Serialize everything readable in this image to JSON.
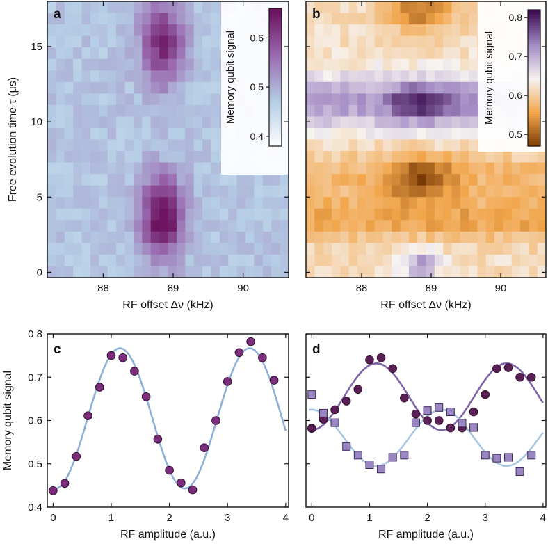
{
  "chart_data": [
    {
      "panel": "a",
      "type": "heatmap",
      "xlabel": "RF offset Δν (kHz)",
      "ylabel": "Free evolution time τ (μs)",
      "xlim": [
        87.2,
        90.65
      ],
      "ylim": [
        -0.35,
        18
      ],
      "xticks": [
        "88",
        "89",
        "90"
      ],
      "xtick_values": [
        88,
        89,
        90
      ],
      "yticks": [
        "0",
        "5",
        "10",
        "15"
      ],
      "ytick_values": [
        0,
        5,
        10,
        15
      ],
      "grid": {
        "cols": 28,
        "rows": 24
      },
      "colorbar": {
        "label": "Memory qubit signal",
        "range": [
          0.38,
          0.66
        ],
        "ticks": [
          "0.4",
          "0.5",
          "0.6"
        ],
        "tick_values": [
          0.4,
          0.5,
          0.6
        ],
        "colors": [
          "#ffffff",
          "#b5cde5",
          "#9a6ab0",
          "#6a0f5c"
        ]
      },
      "model": {
        "background": 0.48,
        "peaks": [
          {
            "x": 88.85,
            "y": 3.7,
            "sx": 0.22,
            "sy": 1.9,
            "amp": 0.19
          },
          {
            "x": 88.85,
            "y": 15.2,
            "sx": 0.22,
            "sy": 2.0,
            "amp": 0.15
          }
        ]
      }
    },
    {
      "panel": "b",
      "type": "heatmap",
      "xlabel": "RF offset Δν (kHz)",
      "xlim": [
        87.2,
        90.65
      ],
      "ylim": [
        -0.35,
        18
      ],
      "xticks": [
        "88",
        "89",
        "90"
      ],
      "xtick_values": [
        88,
        89,
        90
      ],
      "grid": {
        "cols": 28,
        "rows": 24
      },
      "colorbar": {
        "label": "Memory qubit signal",
        "range": [
          0.47,
          0.82
        ],
        "ticks": [
          "0.5",
          "0.6",
          "0.7",
          "0.8"
        ],
        "tick_values": [
          0.5,
          0.6,
          0.7,
          0.8
        ],
        "colors": [
          "#7a3a05",
          "#f2a54a",
          "#f6f3f1",
          "#a38bc4",
          "#3b0b4f"
        ]
      },
      "model": {
        "background": 0.62,
        "bands": [
          {
            "y": 11.3,
            "sy": 1.3,
            "amp": 0.1
          },
          {
            "y": 3.5,
            "sy": 1.0,
            "amp": -0.06
          },
          {
            "y": 6.3,
            "sy": 1.2,
            "amp": -0.04
          }
        ],
        "peaks": [
          {
            "x": 88.85,
            "y": 11.3,
            "sx": 0.3,
            "sy": 0.9,
            "amp": 0.1
          },
          {
            "x": 88.85,
            "y": 6.3,
            "sx": 0.35,
            "sy": 1.0,
            "amp": -0.1
          },
          {
            "x": 88.85,
            "y": 17.3,
            "sx": 0.35,
            "sy": 0.9,
            "amp": -0.1
          },
          {
            "x": 88.85,
            "y": 0.5,
            "sx": 0.2,
            "sy": 0.7,
            "amp": 0.1
          }
        ]
      }
    },
    {
      "panel": "c",
      "type": "scatter",
      "xlabel": "RF amplitude (a.u.)",
      "ylabel": "Memory qubit signal",
      "xlim": [
        -0.1,
        4.05
      ],
      "ylim": [
        0.4,
        0.8
      ],
      "xticks": [
        "0",
        "1",
        "2",
        "3",
        "4"
      ],
      "xtick_values": [
        0,
        1,
        2,
        3,
        4
      ],
      "yticks": [
        "0.4",
        "0.5",
        "0.6",
        "0.7",
        "0.8"
      ],
      "ytick_values": [
        0.4,
        0.5,
        0.6,
        0.7,
        0.8
      ],
      "series": [
        {
          "name": "data",
          "marker": "circle",
          "color": "#7b2d7b",
          "x": [
            0,
            0.2,
            0.4,
            0.6,
            0.8,
            1.0,
            1.2,
            1.4,
            1.6,
            1.8,
            2.0,
            2.2,
            2.4,
            2.6,
            2.8,
            3.0,
            3.2,
            3.4,
            3.6,
            3.8
          ],
          "y": [
            0.438,
            0.455,
            0.517,
            0.611,
            0.677,
            0.75,
            0.745,
            0.714,
            0.655,
            0.557,
            0.485,
            0.456,
            0.44,
            0.537,
            0.6,
            0.69,
            0.757,
            0.782,
            0.745,
            0.693
          ]
        },
        {
          "name": "fit",
          "type": "line",
          "color": "#8eb0d6",
          "function": "offset + amp*cos(2*pi*(x - x0)/period)",
          "params": {
            "offset": 0.605,
            "amp": 0.162,
            "period": 2.23,
            "x0": 1.15
          },
          "x_range": [
            0,
            4
          ]
        }
      ]
    },
    {
      "panel": "d",
      "type": "scatter",
      "xlabel": "RF amplitude (a.u.)",
      "xlim": [
        -0.1,
        4.05
      ],
      "ylim": [
        0.4,
        0.8
      ],
      "xticks": [
        "0",
        "1",
        "2",
        "3",
        "4"
      ],
      "xtick_values": [
        0,
        1,
        2,
        3,
        4
      ],
      "series": [
        {
          "name": "circles",
          "marker": "circle",
          "color": "#5a1f55",
          "x": [
            0,
            0.2,
            0.4,
            0.6,
            0.8,
            1.0,
            1.2,
            1.4,
            1.6,
            1.8,
            2.0,
            2.2,
            2.4,
            2.6,
            2.8,
            3.0,
            3.2,
            3.4,
            3.6,
            3.8
          ],
          "y": [
            0.582,
            0.603,
            0.625,
            0.645,
            0.672,
            0.74,
            0.745,
            0.72,
            0.652,
            0.615,
            0.6,
            0.6,
            0.583,
            0.583,
            0.62,
            0.66,
            0.72,
            0.722,
            0.7,
            0.7
          ]
        },
        {
          "name": "squares",
          "marker": "square",
          "color": "#9a86c2",
          "x": [
            0,
            0.2,
            0.4,
            0.6,
            0.8,
            1.0,
            1.2,
            1.4,
            1.6,
            1.8,
            2.0,
            2.2,
            2.4,
            2.6,
            2.8,
            3.0,
            3.2,
            3.4,
            3.6,
            3.8
          ],
          "y": [
            0.66,
            0.617,
            0.595,
            0.54,
            0.52,
            0.498,
            0.488,
            0.515,
            0.52,
            0.595,
            0.623,
            0.63,
            0.62,
            0.594,
            0.584,
            0.52,
            0.513,
            0.515,
            0.482,
            0.52
          ]
        },
        {
          "name": "circles-fit",
          "type": "line",
          "color": "#8064a8",
          "function": "offset + amp*cos(2*pi*(x - x0)/period)",
          "params": {
            "offset": 0.655,
            "amp": 0.077,
            "period": 2.25,
            "x0": 1.12
          },
          "x_range": [
            0,
            4
          ]
        },
        {
          "name": "squares-fit",
          "type": "line",
          "color": "#a9c6e3",
          "function": "offset - amp*cos(2*pi*(x - x0)/period)",
          "params": {
            "offset": 0.56,
            "amp": 0.065,
            "period": 2.25,
            "x0": 1.12
          },
          "x_range": [
            -0.05,
            4
          ]
        }
      ]
    }
  ]
}
